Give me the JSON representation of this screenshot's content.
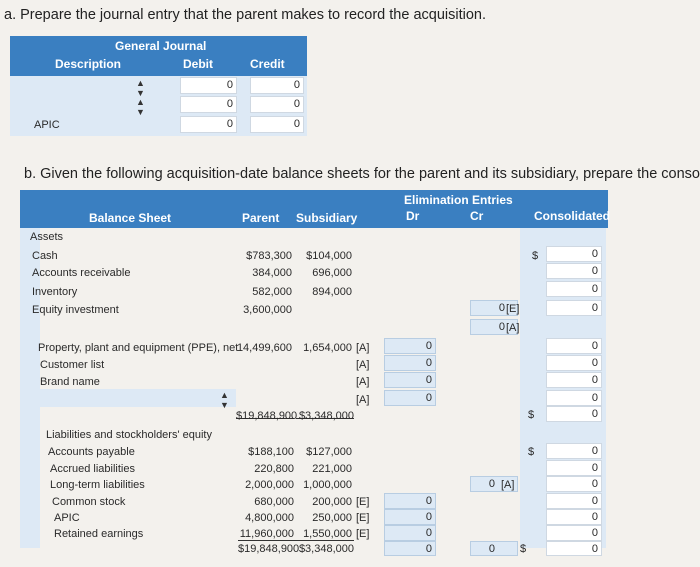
{
  "part_a": {
    "prompt": "a. Prepare the journal entry that the parent makes to record the acquisition.",
    "table_title": "General Journal",
    "col_description": "Description",
    "col_debit": "Debit",
    "col_credit": "Credit",
    "rows": [
      {
        "description": "",
        "debit": "0",
        "credit": "0"
      },
      {
        "description": "",
        "debit": "0",
        "credit": "0"
      },
      {
        "description": "APIC",
        "debit": "0",
        "credit": "0"
      }
    ]
  },
  "part_b": {
    "prompt": "b. Given the following acquisition-date balance sheets for the parent and its subsidiary, prepare the consolidation sp",
    "elim_header": "Elimination Entries",
    "col_balance_sheet": "Balance Sheet",
    "col_parent": "Parent",
    "col_subsidiary": "Subsidiary",
    "col_dr": "Dr",
    "col_cr": "Cr",
    "col_consolidated": "Consolidated",
    "assets_label": "Assets",
    "assets": [
      {
        "label": "Cash",
        "parent": "$783,300",
        "sub": "$104,000",
        "cons": "0",
        "cons_dollar": "$"
      },
      {
        "label": "Accounts receivable",
        "parent": "384,000",
        "sub": "696,000",
        "cons": "0"
      },
      {
        "label": "Inventory",
        "parent": "582,000",
        "sub": "894,000",
        "cons": "0"
      },
      {
        "label": "Equity investment",
        "parent": "3,600,000",
        "sub": "",
        "cr": "0",
        "cr_tag": "[E]",
        "cons": "0"
      },
      {
        "label": "",
        "cr": "0",
        "cr_tag": "[A]"
      }
    ],
    "ppe": [
      {
        "label": "Property, plant and equipment (PPE), net",
        "parent": "14,499,600",
        "sub": "1,654,000",
        "tag": "[A]",
        "dr": "0",
        "cons": "0"
      },
      {
        "label": "Customer list",
        "tag": "[A]",
        "dr": "0",
        "cons": "0"
      },
      {
        "label": "Brand name",
        "tag": "[A]",
        "dr": "0",
        "cons": "0"
      },
      {
        "label": "",
        "tag": "[A]",
        "dr": "0",
        "cons": "0"
      }
    ],
    "total_assets": {
      "parent": "$19,848,900",
      "sub": "$3,348,000",
      "cons": "0",
      "cons_dollar": "$"
    },
    "liab_label": "Liabilities and stockholders' equity",
    "liabilities": [
      {
        "label": "Accounts payable",
        "parent": "$188,100",
        "sub": "$127,000",
        "dr": "",
        "cons": "0",
        "cons_dollar": "$"
      },
      {
        "label": "Accrued liabilities",
        "parent": "220,800",
        "sub": "221,000",
        "cons": "0"
      },
      {
        "label": "Long-term liabilities",
        "parent": "2,000,000",
        "sub": "1,000,000",
        "cr": "0",
        "cr_tag": "[A]",
        "cons": "0"
      },
      {
        "label": "Common stock",
        "parent": "680,000",
        "sub": "200,000",
        "tag": "[E]",
        "dr": "0",
        "cons": "0"
      },
      {
        "label": "APIC",
        "parent": "4,800,000",
        "sub": "250,000",
        "tag": "[E]",
        "dr": "0",
        "cons": "0"
      },
      {
        "label": "Retained earnings",
        "parent": "11,960,000",
        "sub": "1,550,000",
        "tag": "[E]",
        "dr": "0",
        "cons": "0"
      }
    ],
    "total_liab": {
      "parent": "$19,848,900",
      "sub": "$3,348,000",
      "dr": "0",
      "cr": "0",
      "cons": "0",
      "cons_dollar": "$"
    }
  }
}
